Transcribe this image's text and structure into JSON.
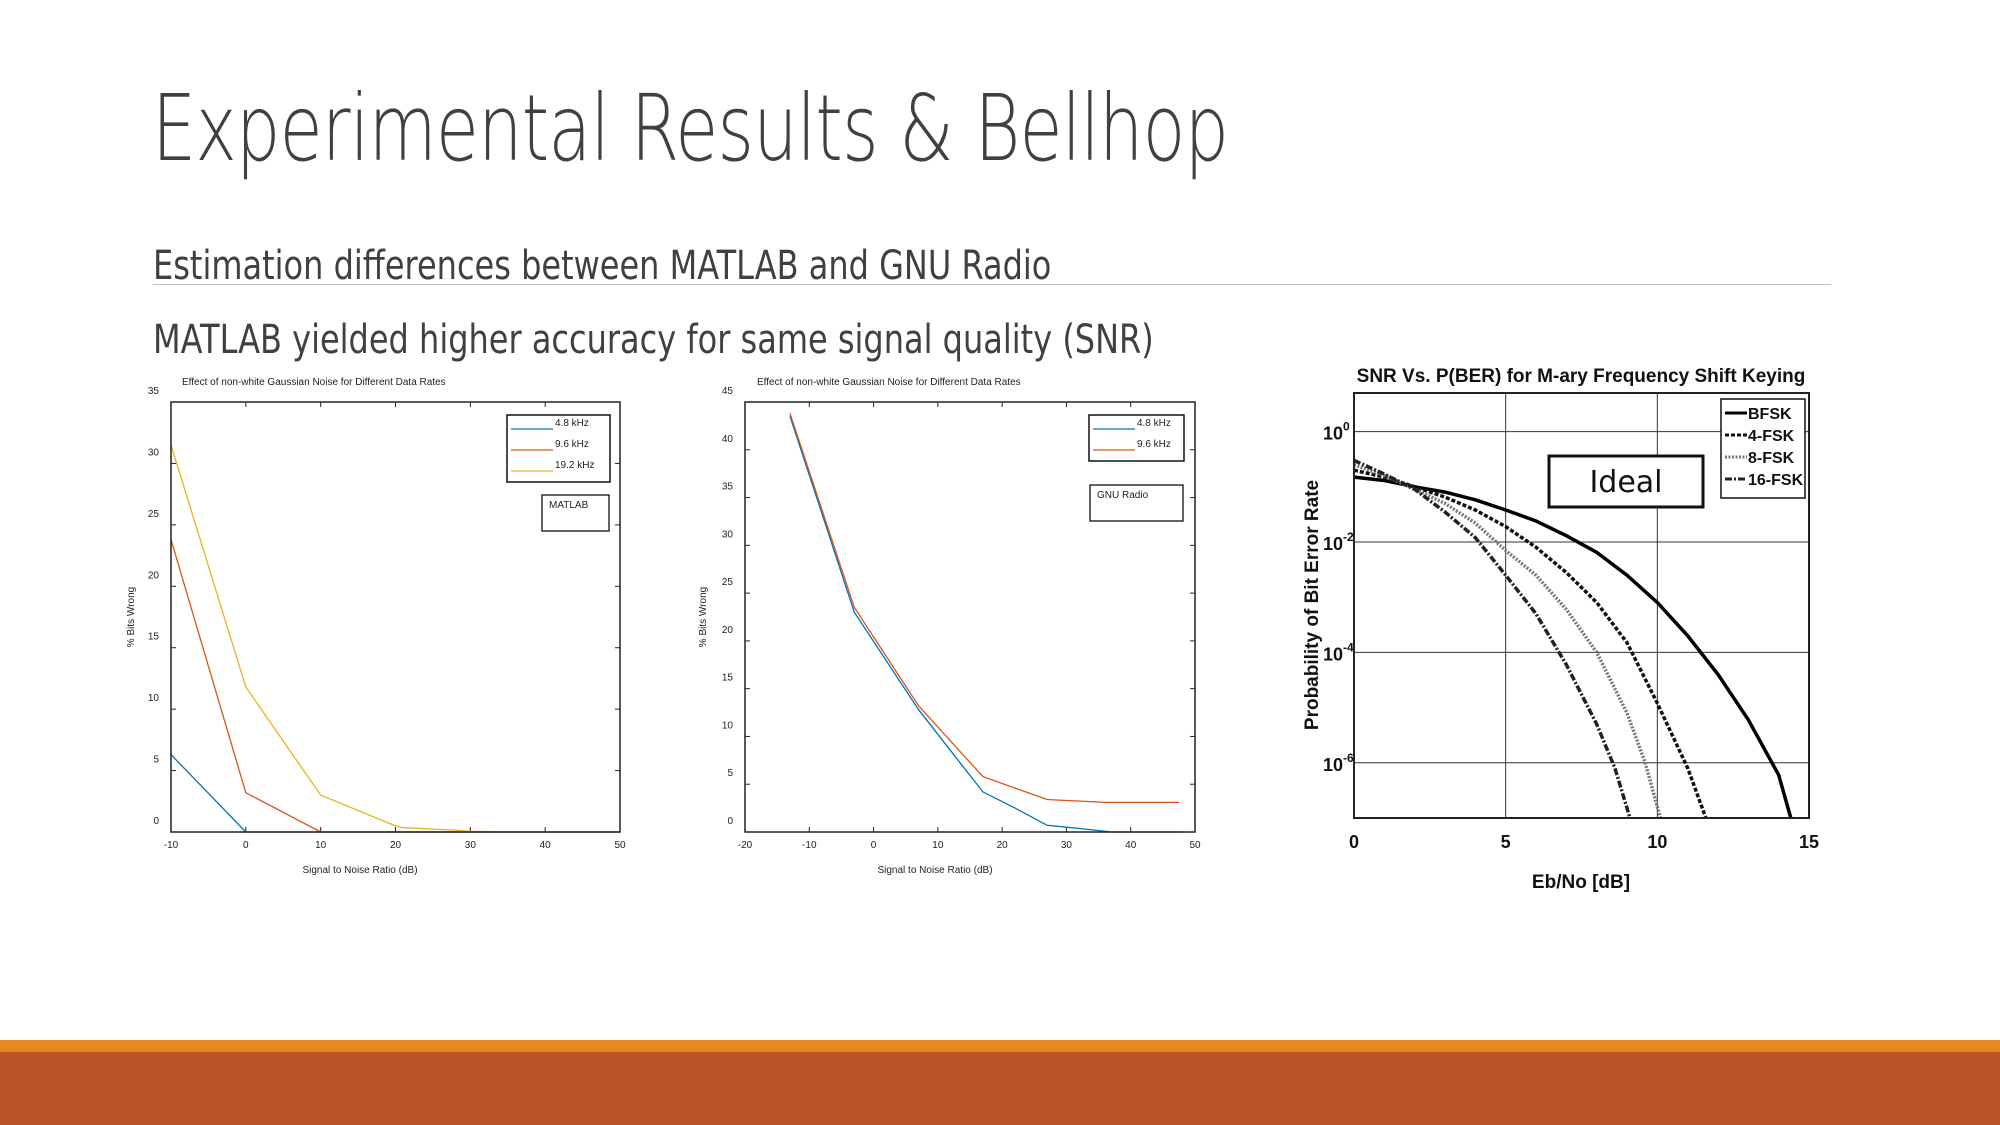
{
  "slide": {
    "title": "Experimental Results & Bellhop",
    "bullets": [
      "Estimation differences between MATLAB and GNU Radio",
      "MATLAB yielded higher accuracy for same signal quality (SNR)"
    ]
  },
  "colors": {
    "blue": "#0072BD",
    "orange": "#D95319",
    "yellow": "#EDB120",
    "accent_light": "#E48A20",
    "accent_dark": "#BA552A"
  },
  "chart_data": [
    {
      "type": "line",
      "title": "Effect of non-white Gaussian Noise for Different Data Rates",
      "xlabel": "Signal to Noise Ratio (dB)",
      "ylabel": "% Bits Wrong",
      "xlim": [
        -10,
        50
      ],
      "ylim": [
        0,
        35
      ],
      "xticks": [
        -10,
        0,
        10,
        20,
        30,
        40,
        50
      ],
      "yticks": [
        0,
        5,
        10,
        15,
        20,
        25,
        30,
        35
      ],
      "annotation": "MATLAB",
      "legend_position": "top-right",
      "series": [
        {
          "name": "4.8 kHz",
          "color": "#0072BD",
          "x": [
            -10,
            0,
            10,
            20,
            30,
            40,
            50
          ],
          "y": [
            6.3,
            0,
            0,
            0,
            0,
            0,
            0
          ]
        },
        {
          "name": "9.6 kHz",
          "color": "#D95319",
          "x": [
            -10,
            0,
            10,
            20,
            30,
            40,
            50
          ],
          "y": [
            23.8,
            3.2,
            0,
            0,
            0,
            0,
            0
          ]
        },
        {
          "name": "19.2 kHz",
          "color": "#EDB120",
          "x": [
            -10,
            0,
            10,
            20,
            21,
            23,
            26,
            28,
            30,
            40,
            50
          ],
          "y": [
            31.5,
            11.8,
            3.0,
            0.5,
            0.35,
            0.3,
            0.2,
            0.15,
            0.05,
            0,
            0
          ]
        }
      ]
    },
    {
      "type": "line",
      "title": "Effect of non-white Gaussian Noise for Different Data Rates",
      "xlabel": "Signal to Noise Ratio (dB)",
      "ylabel": "% Bits Wrong",
      "xlim": [
        -20,
        50
      ],
      "ylim": [
        0,
        45
      ],
      "xticks": [
        -20,
        -10,
        0,
        10,
        20,
        30,
        40,
        50
      ],
      "yticks": [
        0,
        5,
        10,
        15,
        20,
        25,
        30,
        35,
        40,
        45
      ],
      "annotation": "GNU Radio",
      "legend_position": "top-right",
      "series": [
        {
          "name": "4.8 kHz",
          "color": "#0072BD",
          "x": [
            -13,
            -3,
            7,
            12,
            17,
            22,
            27,
            30,
            33,
            37,
            47.5
          ],
          "y": [
            43.5,
            23,
            12.8,
            8.5,
            4.2,
            2.5,
            0.7,
            0.5,
            0.3,
            0,
            0
          ]
        },
        {
          "name": "9.6 kHz",
          "color": "#D95319",
          "x": [
            -13,
            -3,
            7,
            17,
            27,
            30,
            33,
            36,
            47.5
          ],
          "y": [
            43.8,
            23.5,
            13.2,
            5.8,
            3.4,
            3.3,
            3.2,
            3.1,
            3.1
          ]
        }
      ]
    },
    {
      "type": "line",
      "title": "SNR Vs. P(BER) for M-ary Frequency Shift Keying",
      "xlabel": "Eb/No [dB]",
      "ylabel": "Probability of Bit Error Rate",
      "xlim": [
        0,
        15
      ],
      "ylim": [
        1e-07,
        5
      ],
      "yscale": "log",
      "xticks": [
        0,
        5,
        10,
        15
      ],
      "yticks": [
        {
          "value": 1,
          "base": "10",
          "exp": "0"
        },
        {
          "value": 0.01,
          "base": "10",
          "exp": "-2"
        },
        {
          "value": 0.0001,
          "base": "10",
          "exp": "-4"
        },
        {
          "value": 1e-06,
          "base": "10",
          "exp": "-6"
        }
      ],
      "grid": true,
      "annotation": "Ideal",
      "legend_position": "top-right",
      "series": [
        {
          "name": "BFSK",
          "color": "#000000",
          "x": [
            0,
            1,
            2,
            3,
            4,
            5,
            6,
            7,
            8,
            9,
            10,
            11,
            12,
            13,
            14,
            14.4
          ],
          "y": [
            0.15,
            0.13,
            0.1,
            0.08,
            0.058,
            0.038,
            0.024,
            0.013,
            0.0065,
            0.0025,
            0.0008,
            0.0002,
            4e-05,
            6e-06,
            6e-07,
            1e-07
          ]
        },
        {
          "name": "4-FSK",
          "color": "#111111",
          "x": [
            0,
            1,
            2,
            3,
            4,
            5,
            6,
            7,
            8,
            9,
            10,
            11,
            11.6
          ],
          "y": [
            0.2,
            0.15,
            0.1,
            0.065,
            0.038,
            0.019,
            0.008,
            0.0028,
            0.0008,
            0.00015,
            1.2e-05,
            8e-07,
            1e-07
          ]
        },
        {
          "name": "8-FSK",
          "color": "#777777",
          "x": [
            0,
            1,
            2,
            3,
            4,
            5,
            6,
            7,
            8,
            9,
            9.6,
            10.1
          ],
          "y": [
            0.25,
            0.16,
            0.09,
            0.05,
            0.022,
            0.007,
            0.0025,
            0.0006,
            0.0001,
            8e-06,
            1e-06,
            1e-07
          ]
        },
        {
          "name": "16-FSK",
          "color": "#222222",
          "x": [
            0,
            1,
            2,
            3,
            4,
            5,
            6,
            7,
            8,
            8.6,
            9.1
          ],
          "y": [
            0.3,
            0.17,
            0.09,
            0.035,
            0.012,
            0.0025,
            0.0005,
            6e-05,
            5e-06,
            8e-07,
            1e-07
          ]
        }
      ]
    }
  ]
}
